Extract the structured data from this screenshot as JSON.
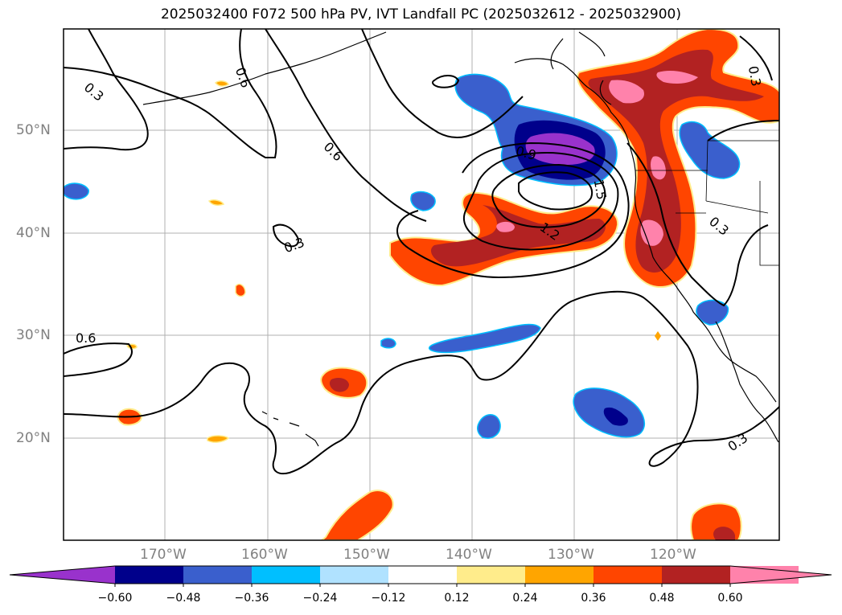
{
  "title": "2025032400 F072 500 hPa PV, IVT Landfall PC (2025032612 - 2025032900)",
  "map": {
    "lat_labels": [
      "50°N",
      "40°N",
      "30°N",
      "20°N"
    ],
    "lon_labels": [
      "170°W",
      "160°W",
      "150°W",
      "140°W",
      "130°W",
      "120°W"
    ],
    "contour_labels": [
      "0.3",
      "0.6",
      "0.6",
      "0.3",
      "0.6",
      "0.9",
      "1.5",
      "1.2",
      "0.3",
      "0.3",
      "0.3"
    ]
  },
  "colorbar": {
    "ticks": [
      "−0.60",
      "−0.48",
      "−0.36",
      "−0.24",
      "−0.12",
      "0.12",
      "0.24",
      "0.36",
      "0.48",
      "0.60"
    ],
    "colors": [
      "#9932cc",
      "#00008b",
      "#3a5fcd",
      "#00bfff",
      "#b0e2ff",
      "#ffffff",
      "#ffec8b",
      "#ffa500",
      "#ff4500",
      "#b22222",
      "#ff82ab",
      "#ff82ab"
    ]
  }
}
